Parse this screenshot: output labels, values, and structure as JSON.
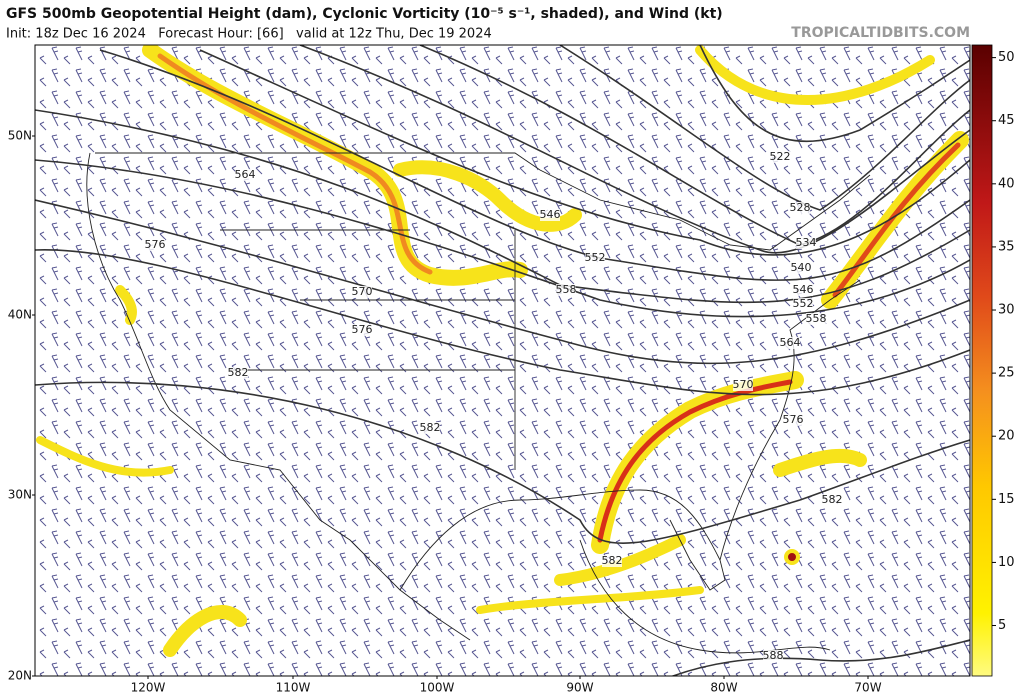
{
  "header": {
    "title": "GFS 500mb Geopotential Height (dam), Cyclonic Vorticity (10⁻⁵ s⁻¹, shaded), and Wind (kt)",
    "subtitle": "Init: 18z Dec 16 2024   Forecast Hour: [66]   valid at 12z Thu, Dec 19 2024",
    "source": "TROPICALTIDBITS.COM"
  },
  "map": {
    "lat_labels": [
      "50N",
      "40N",
      "30N",
      "20N"
    ],
    "lon_labels": [
      "120W",
      "110W",
      "100W",
      "90W",
      "80W",
      "70W"
    ],
    "contour_labels": [
      "564",
      "576",
      "570",
      "576",
      "582",
      "582",
      "546",
      "552",
      "558",
      "522",
      "528",
      "534",
      "540",
      "546",
      "552",
      "558",
      "564",
      "570",
      "576",
      "582",
      "582",
      "588"
    ]
  },
  "colorbar": {
    "range": [
      1,
      51
    ],
    "ticks": [
      5,
      10,
      15,
      20,
      25,
      30,
      35,
      40,
      45,
      50
    ]
  }
}
